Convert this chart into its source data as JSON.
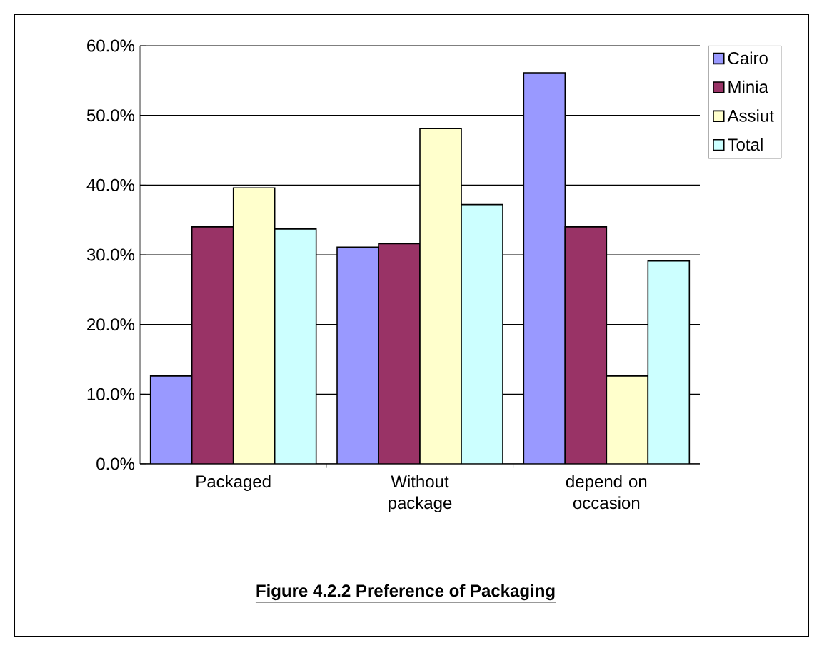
{
  "chart_data": {
    "type": "bar",
    "title": "Figure 4.2.2 Preference of Packaging",
    "categories": [
      "Packaged",
      "Without package",
      "depend on occasion"
    ],
    "series": [
      {
        "name": "Cairo",
        "color": "#9999ff",
        "values": [
          12.6,
          31.1,
          56.1
        ]
      },
      {
        "name": "Minia",
        "color": "#993366",
        "values": [
          34.0,
          31.6,
          34.0
        ]
      },
      {
        "name": "Assiut",
        "color": "#ffffcc",
        "values": [
          39.6,
          48.1,
          12.6
        ]
      },
      {
        "name": "Total",
        "color": "#ccffff",
        "values": [
          33.7,
          37.2,
          29.1
        ]
      }
    ],
    "ylim": [
      0,
      60
    ],
    "yticks": [
      {
        "value": 0,
        "label": "0.0%"
      },
      {
        "value": 10,
        "label": "10.0%"
      },
      {
        "value": 20,
        "label": "20.0%"
      },
      {
        "value": 30,
        "label": "30.0%"
      },
      {
        "value": 40,
        "label": "40.0%"
      },
      {
        "value": 50,
        "label": "50.0%"
      },
      {
        "value": 60,
        "label": "60.0%"
      }
    ],
    "grid": "y",
    "legend": "right"
  }
}
